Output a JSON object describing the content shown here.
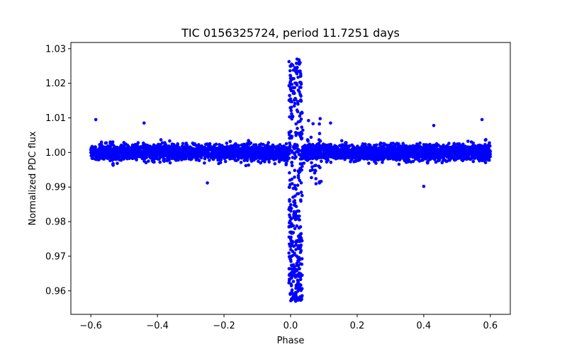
{
  "chart_data": {
    "type": "scatter",
    "title": "TIC 0156325724, period 11.7251 days",
    "xlabel": "Phase",
    "ylabel": "Normalized PDC flux",
    "xlim": [
      -0.66,
      0.66
    ],
    "ylim": [
      0.9532,
      1.0318
    ],
    "x_ticks": [
      -0.6,
      -0.4,
      -0.2,
      0.0,
      0.2,
      0.4,
      0.6
    ],
    "x_tick_labels": [
      "−0.6",
      "−0.4",
      "−0.2",
      "0.0",
      "0.2",
      "0.4",
      "0.6"
    ],
    "y_ticks": [
      0.96,
      0.97,
      0.98,
      0.99,
      1.0,
      1.01,
      1.02,
      1.03
    ],
    "y_tick_labels": [
      "0.96",
      "0.97",
      "0.98",
      "0.99",
      "1.00",
      "1.01",
      "1.02",
      "1.03"
    ],
    "marker_color": "#0000ff",
    "grid": false,
    "legend": "none",
    "series": [
      {
        "name": "flux",
        "description": "Phase-folded light curve; baseline scatter around 1.000 (approx 0.993-1.007) over phase -0.6 to 0.6; transit dip near phase 0.0-0.03 reaching about 0.957; brief brightening up to about 1.027 near phase 0.0-0.03",
        "x_range": [
          -0.6,
          0.6
        ],
        "baseline": 1.0,
        "baseline_spread": 0.0065,
        "dip_min": 0.957,
        "peak_max": 1.027,
        "event_phase_range": [
          -0.005,
          0.035
        ],
        "notable_points": [
          {
            "x": -0.585,
            "y": 1.0095
          },
          {
            "x": -0.44,
            "y": 1.0085
          },
          {
            "x": -0.25,
            "y": 0.9912
          },
          {
            "x": 0.12,
            "y": 1.0085
          },
          {
            "x": 0.4,
            "y": 0.9902
          },
          {
            "x": 0.43,
            "y": 1.0078
          },
          {
            "x": 0.575,
            "y": 1.0095
          }
        ]
      }
    ]
  }
}
